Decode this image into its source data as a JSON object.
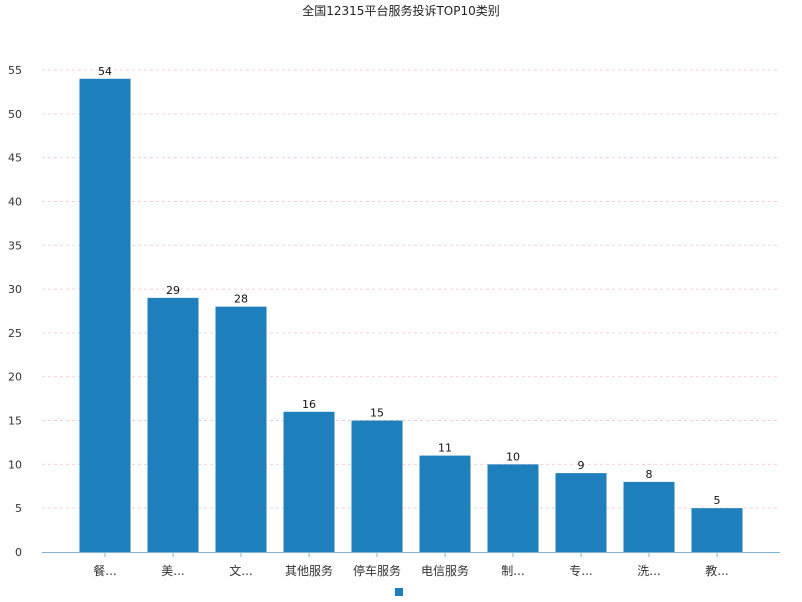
{
  "chart_data": {
    "type": "bar",
    "title": "全国12315平台服务投诉TOP10类别",
    "categories": [
      "餐...",
      "美...",
      "文...",
      "其他服务",
      "停车服务",
      "电信服务",
      "制...",
      "专...",
      "洗...",
      "教..."
    ],
    "series": [
      {
        "values": [
          54,
          29,
          28,
          16,
          15,
          11,
          10,
          9,
          8,
          5
        ]
      }
    ],
    "ylim": [
      0,
      55
    ],
    "yticks": [
      0,
      5,
      10,
      15,
      20,
      25,
      30,
      35,
      40,
      45,
      50,
      55
    ],
    "grid": true,
    "legend_position": "bottom-center",
    "bar_color": "#1f7fbc",
    "grid_color": "#f5cfd6",
    "axis_color": "#7fb3d5"
  }
}
